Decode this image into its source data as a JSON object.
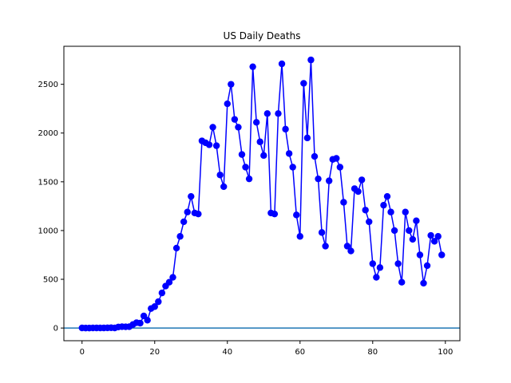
{
  "chart_data": {
    "type": "line",
    "title": "US Daily Deaths",
    "xlabel": "",
    "ylabel": "",
    "xlim": [
      -5,
      104
    ],
    "ylim": [
      -130,
      2890
    ],
    "xticks": [
      0,
      20,
      40,
      60,
      80,
      100
    ],
    "yticks": [
      0,
      500,
      1000,
      1500,
      2000,
      2500
    ],
    "grid": false,
    "series": [
      {
        "color": "#0000ff",
        "marker": "circle",
        "x": [
          0,
          1,
          2,
          3,
          4,
          5,
          6,
          7,
          8,
          9,
          10,
          11,
          12,
          13,
          14,
          15,
          16,
          17,
          18,
          19,
          20,
          21,
          22,
          23,
          24,
          25,
          26,
          27,
          28,
          29,
          30,
          31,
          32,
          33,
          34,
          35,
          36,
          37,
          38,
          39,
          40,
          41,
          42,
          43,
          44,
          45,
          46,
          47,
          48,
          49,
          50,
          51,
          52,
          53,
          54,
          55,
          56,
          57,
          58,
          59,
          60,
          61,
          62,
          63,
          64,
          65,
          66,
          67,
          68,
          69,
          70,
          71,
          72,
          73,
          74,
          75,
          76,
          77,
          78,
          79,
          80,
          81,
          82,
          83,
          84,
          85,
          86,
          87,
          88,
          89,
          90,
          91,
          92,
          93,
          94,
          95,
          96,
          97,
          98,
          99
        ],
        "values": [
          1,
          0,
          0,
          1,
          1,
          1,
          1,
          2,
          3,
          1,
          11,
          14,
          13,
          14,
          36,
          55,
          50,
          124,
          80,
          200,
          220,
          270,
          360,
          430,
          470,
          520,
          820,
          940,
          1090,
          1190,
          1350,
          1180,
          1170,
          1920,
          1900,
          1880,
          2060,
          1870,
          1570,
          1450,
          2300,
          2500,
          2140,
          2060,
          1780,
          1650,
          1530,
          2680,
          2110,
          1910,
          1770,
          2200,
          1180,
          1170,
          2200,
          2710,
          2040,
          1790,
          1650,
          1160,
          940,
          2510,
          1950,
          2750,
          1760,
          1530,
          980,
          840,
          1510,
          1730,
          1740,
          1650,
          1290,
          840,
          790,
          1430,
          1400,
          1520,
          1210,
          1090,
          660,
          520,
          620,
          1260,
          1350,
          1190,
          1000,
          660,
          470,
          1190,
          1000,
          910,
          1100,
          750,
          460,
          640,
          950,
          890,
          940,
          750
        ]
      }
    ],
    "reference_line": {
      "y": 0,
      "color": "#1f77b4"
    }
  }
}
